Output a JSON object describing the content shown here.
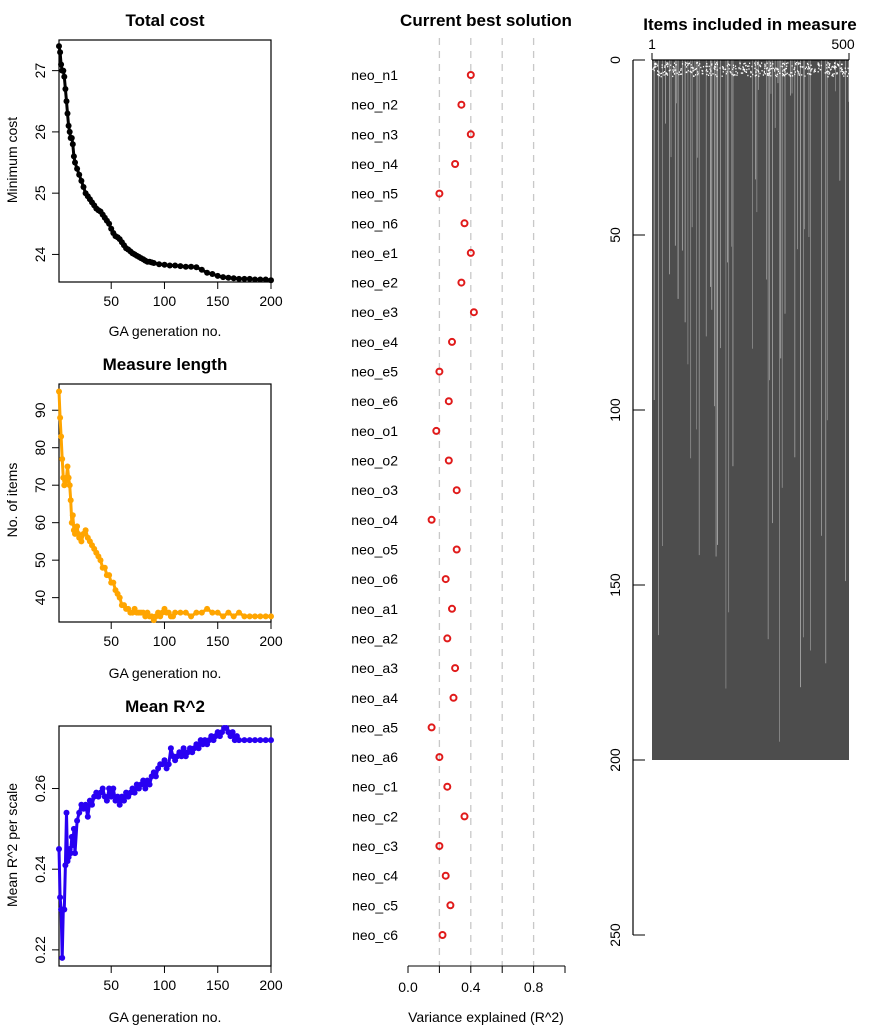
{
  "colors": {
    "cost": "#000000",
    "length": "#FFA500",
    "r2": "#2800F2",
    "solution": "#E01A1A",
    "matrix_bg": "#4D4D4D",
    "matrix_fg": "#CFCFCF"
  },
  "chart_data": [
    {
      "id": "total_cost",
      "type": "line",
      "title": "Total cost",
      "xlabel": "GA generation no.",
      "ylabel": "Minimum cost",
      "xlim": [
        1,
        200
      ],
      "ylim": [
        23.55,
        27.5
      ],
      "xticks": [
        50,
        100,
        150,
        200
      ],
      "yticks": [
        24,
        25,
        26,
        27
      ],
      "series": [
        {
          "x": [
            1,
            2,
            3,
            4,
            5,
            6,
            7,
            8,
            9,
            10,
            11,
            12,
            13,
            14,
            15,
            16,
            18,
            20,
            22,
            24,
            26,
            28,
            30,
            32,
            34,
            36,
            38,
            40,
            42,
            44,
            46,
            48,
            50,
            52,
            54,
            56,
            58,
            60,
            62,
            64,
            66,
            68,
            70,
            72,
            74,
            76,
            78,
            80,
            82,
            84,
            86,
            88,
            90,
            95,
            100,
            105,
            110,
            115,
            120,
            125,
            130,
            135,
            140,
            145,
            150,
            155,
            160,
            165,
            170,
            175,
            180,
            185,
            190,
            195,
            200
          ],
          "values": [
            27.4,
            27.3,
            27.1,
            27.0,
            27.0,
            26.9,
            26.7,
            26.5,
            26.3,
            26.1,
            26.0,
            25.9,
            25.9,
            25.8,
            25.6,
            25.5,
            25.4,
            25.3,
            25.2,
            25.1,
            25.0,
            24.95,
            24.9,
            24.85,
            24.8,
            24.75,
            24.72,
            24.7,
            24.65,
            24.6,
            24.55,
            24.5,
            24.42,
            24.35,
            24.3,
            24.28,
            24.25,
            24.2,
            24.15,
            24.1,
            24.08,
            24.05,
            24.02,
            24.0,
            23.98,
            23.96,
            23.94,
            23.92,
            23.9,
            23.88,
            23.88,
            23.87,
            23.86,
            23.84,
            23.83,
            23.82,
            23.82,
            23.81,
            23.8,
            23.8,
            23.79,
            23.75,
            23.7,
            23.68,
            23.65,
            23.63,
            23.62,
            23.61,
            23.6,
            23.6,
            23.6,
            23.59,
            23.59,
            23.59,
            23.58
          ]
        }
      ]
    },
    {
      "id": "measure_length",
      "type": "line",
      "title": "Measure length",
      "xlabel": "GA generation no.",
      "ylabel": "No. of items",
      "xlim": [
        1,
        200
      ],
      "ylim": [
        33.5,
        97
      ],
      "xticks": [
        50,
        100,
        150,
        200
      ],
      "yticks": [
        40,
        50,
        60,
        70,
        80,
        90
      ],
      "series": [
        {
          "x": [
            1,
            2,
            3,
            4,
            5,
            6,
            7,
            8,
            9,
            10,
            11,
            12,
            13,
            14,
            15,
            16,
            17,
            18,
            19,
            20,
            22,
            24,
            26,
            28,
            30,
            32,
            34,
            36,
            38,
            40,
            42,
            44,
            46,
            48,
            50,
            52,
            54,
            56,
            58,
            60,
            62,
            64,
            66,
            68,
            70,
            72,
            74,
            76,
            78,
            80,
            82,
            84,
            86,
            88,
            90,
            92,
            94,
            96,
            98,
            100,
            102,
            104,
            106,
            108,
            110,
            115,
            120,
            125,
            130,
            135,
            140,
            145,
            150,
            155,
            160,
            165,
            170,
            175,
            180,
            185,
            190,
            195,
            200
          ],
          "values": [
            95,
            88,
            83,
            77,
            72,
            70,
            71,
            72,
            75,
            72,
            70,
            66,
            60,
            62,
            58,
            57,
            58,
            59,
            57,
            56,
            55,
            57,
            58,
            56,
            55,
            54,
            53,
            52,
            51,
            50,
            48,
            48,
            46,
            46,
            44,
            44,
            42,
            41,
            40,
            38,
            38,
            37,
            37,
            36,
            36,
            37,
            36,
            36,
            36,
            36,
            35,
            36,
            35,
            35,
            34,
            35,
            36,
            35,
            36,
            37,
            36,
            36,
            35,
            35,
            36,
            36,
            36,
            35,
            36,
            36,
            37,
            36,
            36,
            35,
            36,
            35,
            36,
            35,
            35,
            35,
            35,
            35,
            35
          ]
        }
      ]
    },
    {
      "id": "mean_r2",
      "type": "line",
      "title": "Mean R^2",
      "xlabel": "GA generation no.",
      "ylabel": "Mean R^2 per scale",
      "xlim": [
        1,
        200
      ],
      "ylim": [
        0.216,
        0.2755
      ],
      "xticks": [
        50,
        100,
        150,
        200
      ],
      "yticks": [
        0.22,
        0.24,
        0.26
      ],
      "series": [
        {
          "x": [
            1,
            2,
            3,
            4,
            5,
            6,
            7,
            8,
            9,
            10,
            11,
            12,
            13,
            14,
            15,
            16,
            18,
            20,
            22,
            24,
            26,
            28,
            30,
            32,
            34,
            36,
            38,
            40,
            42,
            44,
            46,
            48,
            50,
            52,
            54,
            56,
            58,
            60,
            62,
            64,
            66,
            68,
            70,
            72,
            74,
            76,
            78,
            80,
            82,
            84,
            86,
            88,
            90,
            92,
            94,
            96,
            98,
            100,
            102,
            104,
            106,
            108,
            110,
            112,
            114,
            116,
            118,
            120,
            122,
            124,
            126,
            128,
            130,
            132,
            134,
            136,
            138,
            140,
            142,
            144,
            146,
            148,
            150,
            152,
            154,
            156,
            158,
            160,
            162,
            164,
            166,
            168,
            170,
            175,
            180,
            185,
            190,
            195,
            200
          ],
          "values": [
            0.245,
            0.233,
            0.23,
            0.218,
            0.23,
            0.23,
            0.241,
            0.254,
            0.242,
            0.243,
            0.245,
            0.244,
            0.248,
            0.246,
            0.25,
            0.244,
            0.252,
            0.254,
            0.256,
            0.255,
            0.256,
            0.253,
            0.257,
            0.256,
            0.258,
            0.259,
            0.258,
            0.259,
            0.26,
            0.258,
            0.257,
            0.26,
            0.258,
            0.26,
            0.257,
            0.258,
            0.256,
            0.258,
            0.257,
            0.259,
            0.258,
            0.259,
            0.26,
            0.259,
            0.261,
            0.26,
            0.261,
            0.262,
            0.26,
            0.262,
            0.261,
            0.263,
            0.264,
            0.263,
            0.265,
            0.266,
            0.266,
            0.267,
            0.265,
            0.266,
            0.27,
            0.268,
            0.267,
            0.268,
            0.269,
            0.268,
            0.27,
            0.268,
            0.269,
            0.27,
            0.269,
            0.27,
            0.271,
            0.27,
            0.272,
            0.271,
            0.272,
            0.271,
            0.272,
            0.273,
            0.272,
            0.273,
            0.274,
            0.273,
            0.274,
            0.275,
            0.275,
            0.274,
            0.273,
            0.274,
            0.272,
            0.273,
            0.272,
            0.272,
            0.272,
            0.272,
            0.272,
            0.272,
            0.272
          ]
        }
      ]
    },
    {
      "id": "best_solution",
      "type": "scatter",
      "title": "Current best solution",
      "xlabel": "Variance explained (R^2)",
      "ylabel": "",
      "xlim": [
        0,
        1
      ],
      "xticks": [
        0.0,
        0.4,
        0.8
      ],
      "xtick_labels": [
        "0.0",
        "0.4",
        "0.8"
      ],
      "gridlines_x": [
        0.2,
        0.4,
        0.6,
        0.8
      ],
      "grid": "dashed vertical",
      "categories": [
        "neo_n1",
        "neo_n2",
        "neo_n3",
        "neo_n4",
        "neo_n5",
        "neo_n6",
        "neo_e1",
        "neo_e2",
        "neo_e3",
        "neo_e4",
        "neo_e5",
        "neo_e6",
        "neo_o1",
        "neo_o2",
        "neo_o3",
        "neo_o4",
        "neo_o5",
        "neo_o6",
        "neo_a1",
        "neo_a2",
        "neo_a3",
        "neo_a4",
        "neo_a5",
        "neo_a6",
        "neo_c1",
        "neo_c2",
        "neo_c3",
        "neo_c4",
        "neo_c5",
        "neo_c6"
      ],
      "values": [
        0.4,
        0.34,
        0.4,
        0.3,
        0.2,
        0.36,
        0.4,
        0.34,
        0.42,
        0.28,
        0.2,
        0.26,
        0.18,
        0.26,
        0.31,
        0.15,
        0.31,
        0.24,
        0.28,
        0.25,
        0.3,
        0.29,
        0.15,
        0.2,
        0.25,
        0.36,
        0.2,
        0.24,
        0.27,
        0.22
      ]
    },
    {
      "id": "items_matrix",
      "type": "heatmap",
      "title": "Items included in measure",
      "x_axis": {
        "position": "top",
        "range": [
          1,
          500
        ],
        "tick_labels": [
          "1",
          "500"
        ]
      },
      "y_axis": {
        "range": [
          0,
          250
        ],
        "reversed": true,
        "ticks": [
          0,
          50,
          100,
          150,
          200,
          250
        ]
      },
      "rows": 200,
      "columns": 500,
      "cell_colors": {
        "included": "#CFCFCF",
        "excluded": "#4D4D4D"
      }
    }
  ]
}
